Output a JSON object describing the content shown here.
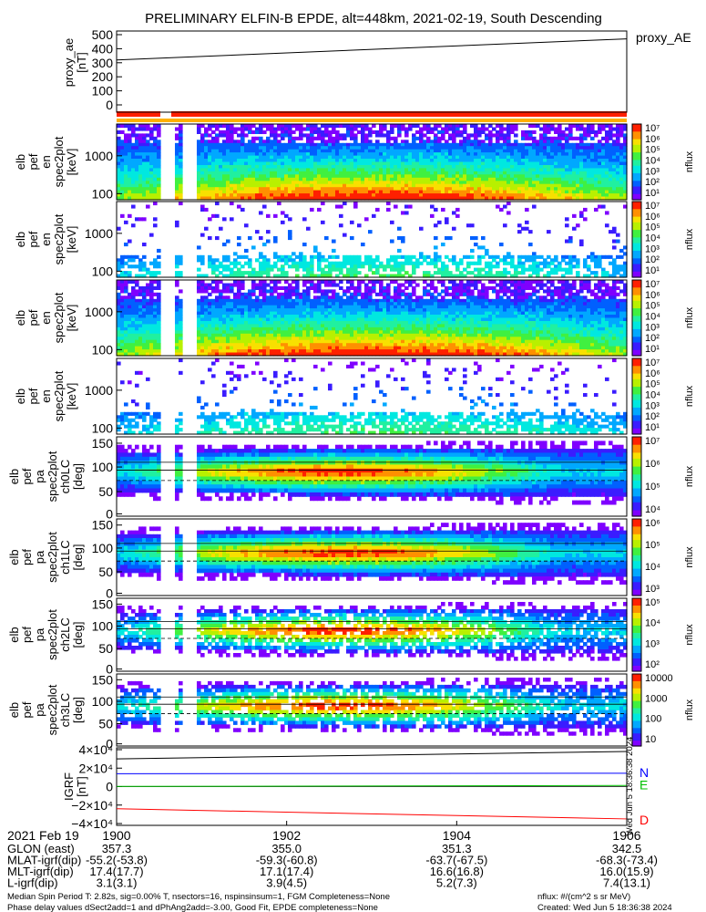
{
  "title": "PRELIMINARY ELFIN-B EPDE, alt=448km, 2021-02-19, South Descending",
  "chart_data": [
    {
      "type": "line",
      "panel": "proxy_ae",
      "ylabel_lines": [
        "proxy_ae",
        "[nT]"
      ],
      "legend": "proxy_AE",
      "ylim": [
        0,
        500
      ],
      "yticks": [
        0,
        100,
        200,
        300,
        400,
        500
      ],
      "x_minutes": [
        0,
        6
      ],
      "values": [
        320,
        470
      ]
    },
    {
      "type": "heatmap",
      "panel": "energy-spectrogram",
      "ylabel_lines": [
        "elb",
        "pef",
        "en",
        "spec2plot",
        "[keV]"
      ],
      "yticks": [
        "1000",
        "100"
      ],
      "zlabel": "nflux",
      "zticks": [
        "10⁷",
        "10⁶",
        "10⁵",
        "10⁴",
        "10³",
        "10²",
        "10¹"
      ]
    },
    {
      "type": "heatmap",
      "panel": "energy-spectrogram",
      "ylabel_lines": [
        "elb",
        "pef",
        "en",
        "spec2plot",
        "[keV]"
      ],
      "yticks": [
        "1000",
        "100"
      ],
      "zlabel": "nflux",
      "zticks": [
        "10⁷",
        "10⁶",
        "10⁵",
        "10⁴",
        "10³",
        "10²",
        "10¹"
      ]
    },
    {
      "type": "heatmap",
      "panel": "energy-spectrogram",
      "ylabel_lines": [
        "elb",
        "pef",
        "en",
        "spec2plot",
        "[keV]"
      ],
      "yticks": [
        "1000",
        "100"
      ],
      "zlabel": "nflux",
      "zticks": [
        "10⁷",
        "10⁶",
        "10⁵",
        "10⁴",
        "10³",
        "10²",
        "10¹"
      ]
    },
    {
      "type": "heatmap",
      "panel": "energy-spectrogram",
      "ylabel_lines": [
        "elb",
        "pef",
        "en",
        "spec2plot",
        "[keV]"
      ],
      "yticks": [
        "1000",
        "100"
      ],
      "zlabel": "nflux",
      "zticks": [
        "10⁷",
        "10⁶",
        "10⁵",
        "10⁴",
        "10³",
        "10²",
        "10¹"
      ]
    },
    {
      "type": "heatmap",
      "panel": "pitch-angle-spectrogram",
      "ylabel_lines": [
        "elb",
        "pef",
        "pa",
        "spec2plot",
        "ch0LC",
        "[deg]"
      ],
      "yticks": [
        "150",
        "100",
        "50",
        "0"
      ],
      "zlabel": "nflux",
      "zticks": [
        "10⁷",
        "10⁶",
        "10⁵",
        "10⁴"
      ]
    },
    {
      "type": "heatmap",
      "panel": "pitch-angle-spectrogram",
      "ylabel_lines": [
        "elb",
        "pef",
        "pa",
        "spec2plot",
        "ch1LC",
        "[deg]"
      ],
      "yticks": [
        "150",
        "100",
        "50",
        "0"
      ],
      "zlabel": "nflux",
      "zticks": [
        "10⁶",
        "10⁵",
        "10⁴",
        "10³"
      ]
    },
    {
      "type": "heatmap",
      "panel": "pitch-angle-spectrogram",
      "ylabel_lines": [
        "elb",
        "pef",
        "pa",
        "spec2plot",
        "ch2LC",
        "[deg]"
      ],
      "yticks": [
        "150",
        "100",
        "50",
        "0"
      ],
      "zlabel": "nflux",
      "zticks": [
        "10⁵",
        "10⁴",
        "10³",
        "10²"
      ]
    },
    {
      "type": "heatmap",
      "panel": "pitch-angle-spectrogram",
      "ylabel_lines": [
        "elb",
        "pef",
        "pa",
        "spec2plot",
        "ch3LC",
        "[deg]"
      ],
      "yticks": [
        "150",
        "100",
        "50",
        "0"
      ],
      "zlabel": "nflux",
      "zticks": [
        "10000",
        "1000",
        "100",
        "10"
      ]
    },
    {
      "type": "line",
      "panel": "igrf",
      "ylabel_lines": [
        "IGRF",
        "[nT]"
      ],
      "yticks": [
        "4×10⁴",
        "2×10⁴",
        "0",
        "−2×10⁴",
        "−4×10⁴"
      ],
      "ylim": [
        -40000,
        40000
      ],
      "series": [
        {
          "name": "N",
          "color": "#0000ff",
          "values": [
            14000,
            14500
          ]
        },
        {
          "name": "E",
          "color": "#00c000",
          "values": [
            200,
            1200
          ]
        },
        {
          "name": "D",
          "color": "#ff0000",
          "values": [
            -24000,
            -35000
          ]
        },
        {
          "color": "#000000",
          "values": [
            30000,
            38000
          ]
        }
      ]
    }
  ],
  "xaxis": {
    "ticks": [
      "1900",
      "1902",
      "1904",
      "1906"
    ],
    "date": "2021 Feb 19"
  },
  "ephemeris": [
    {
      "label": "GLON (east)",
      "values": [
        "357.3",
        "355.0",
        "351.3",
        "342.5"
      ]
    },
    {
      "label": "MLAT-igrf(dip)",
      "values": [
        "-55.2(-53.8)",
        "-59.3(-60.8)",
        "-63.7(-67.5)",
        "-68.3(-73.4)"
      ]
    },
    {
      "label": "MLT-igrf(dip)",
      "values": [
        "17.4(17.7)",
        "17.1(17.4)",
        "16.6(16.8)",
        "16.0(15.9)"
      ]
    },
    {
      "label": "L-igrf(dip)",
      "values": [
        "3.1(3.1)",
        "3.9(4.5)",
        "5.2(7.3)",
        "7.4(13.1)"
      ]
    }
  ],
  "footer": {
    "line1": "Median Spin Period T: 2.82s, sig=0.00% T, nsectors=16, nspinsinsum=1, FGM Completeness=None",
    "line2": "Phase delay values dSect2add=1 and dPhAng2add=-3.00, Good Fit, EPDE completeness=None",
    "units": "nflux: #/(cm^2 s sr MeV)",
    "created": "Created: Wed Jun  5 18:36:38 2024"
  },
  "side_stamp": "Wed Jun 5 18:36:38 2024"
}
